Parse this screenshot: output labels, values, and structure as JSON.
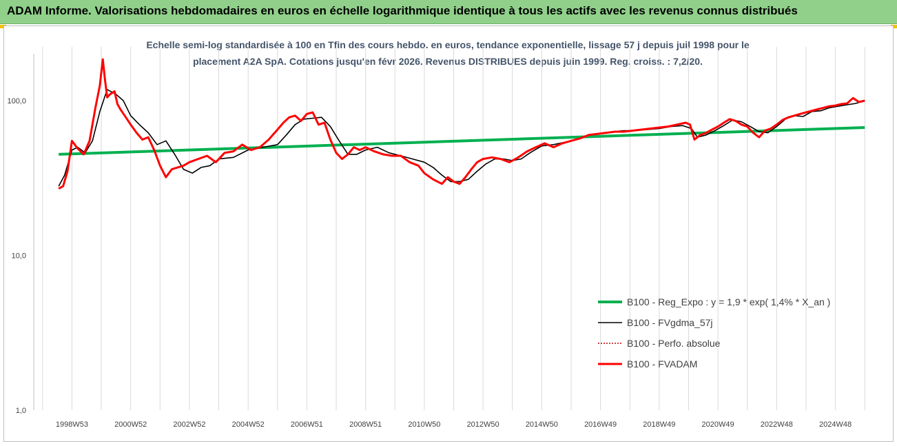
{
  "banner": {
    "title": "ADAM Informe. Valorisations hebdomadaires en euros en échelle logarithmique identique à tous les actifs avec les revenus connus distribués",
    "color": "#90d08a",
    "corner_color": "#f2c100"
  },
  "chart_data": {
    "type": "line",
    "title_line1": "Echelle semi-log standardisée à 100 en Tfin des cours hebdo. en euros, tendance exponentielle, lissage 57 j depuis juil 1998 pour le",
    "title_line2": "placement A2A SpA. Cotations jusqu'en févr 2026. Revenus DISTRIBUES depuis juin 1999. Reg. croiss. : 7,2/20.",
    "y_scale": "log",
    "ylim": [
      1,
      200
    ],
    "yticks": [
      1,
      10,
      100
    ],
    "ytick_labels": [
      "1,0",
      "10,0",
      "100,0"
    ],
    "xlim": [
      1997.7,
      2026.3
    ],
    "xticks": [
      1999.0,
      2001.0,
      2003.0,
      2005.0,
      2007.0,
      2009.0,
      2011.0,
      2013.0,
      2015.0,
      2017.0,
      2019.0,
      2021.0,
      2023.0,
      2025.0
    ],
    "xtick_labels": [
      "1998W53",
      "2000W52",
      "2002W52",
      "2004W52",
      "2006W51",
      "2008W51",
      "2010W50",
      "2012W50",
      "2014W50",
      "2016W49",
      "2018W49",
      "2020W49",
      "2022W48",
      "2024W48"
    ],
    "grid_x": true,
    "legend_position": "bottom-right",
    "series": [
      {
        "name": "B100 - Reg_Expo : y = 1,9 * exp( 1,4% *  X_an )",
        "color": "#00b050",
        "style": "solid-thick",
        "x": [
          1998.55,
          2026.0
        ],
        "y": [
          45,
          67
        ]
      },
      {
        "name": "B100 - FVgdma_57j",
        "color": "#000000",
        "style": "solid-thin",
        "x": [
          1998.55,
          1998.75,
          1999.0,
          1999.2,
          1999.45,
          1999.7,
          1999.95,
          2000.2,
          2000.5,
          2000.75,
          2001.0,
          2001.3,
          2001.6,
          2001.9,
          2002.2,
          2002.5,
          2002.8,
          2003.1,
          2003.4,
          2003.7,
          2004.0,
          2004.5,
          2005.0,
          2005.5,
          2006.0,
          2006.3,
          2006.6,
          2006.9,
          2007.2,
          2007.5,
          2007.8,
          2008.1,
          2008.4,
          2008.7,
          2009.0,
          2009.4,
          2009.8,
          2010.2,
          2010.6,
          2011.0,
          2011.3,
          2011.6,
          2011.9,
          2012.2,
          2012.5,
          2012.8,
          2013.1,
          2013.4,
          2013.7,
          2014.0,
          2014.3,
          2014.6,
          2015.0,
          2015.4,
          2015.8,
          2016.2,
          2016.6,
          2017.0,
          2017.4,
          2017.8,
          2018.2,
          2018.6,
          2019.0,
          2019.4,
          2019.8,
          2020.1,
          2020.3,
          2020.6,
          2020.9,
          2021.2,
          2021.5,
          2021.8,
          2022.1,
          2022.4,
          2022.7,
          2023.0,
          2023.3,
          2023.6,
          2023.9,
          2024.2,
          2024.5,
          2024.8,
          2025.1,
          2025.4,
          2025.7,
          2026.0
        ],
        "y": [
          28,
          33,
          48,
          50,
          46,
          55,
          85,
          118,
          110,
          100,
          80,
          70,
          62,
          52,
          55,
          45,
          36,
          34,
          37,
          38,
          42,
          43,
          48,
          50,
          52,
          60,
          70,
          76,
          77,
          78,
          68,
          55,
          45,
          45,
          48,
          50,
          46,
          44,
          42,
          40,
          37,
          33,
          30,
          30,
          31,
          35,
          39,
          42,
          42,
          41,
          42,
          46,
          51,
          52,
          54,
          56,
          60,
          61,
          63,
          64,
          64,
          65,
          66,
          68,
          69,
          66,
          58,
          60,
          64,
          69,
          75,
          73,
          68,
          63,
          62,
          68,
          76,
          80,
          79,
          85,
          86,
          90,
          92,
          94,
          96,
          100
        ]
      },
      {
        "name": "B100 - Perfo. absolue",
        "color": "#c00000",
        "style": "dotted",
        "x": [
          1998.55,
          1998.7,
          1998.85,
          1999.0,
          1999.2,
          1999.4,
          1999.6,
          1999.8,
          1999.95,
          2000.05,
          2000.12,
          2000.2,
          2000.3,
          2000.45,
          2000.55,
          2000.65,
          2000.8,
          2001.0,
          2001.2,
          2001.4,
          2001.6,
          2001.8,
          2002.0,
          2002.2,
          2002.4,
          2002.6,
          2002.8,
          2003.0,
          2003.3,
          2003.6,
          2003.9,
          2004.2,
          2004.5,
          2004.8,
          2005.1,
          2005.4,
          2005.7,
          2006.0,
          2006.2,
          2006.4,
          2006.6,
          2006.8,
          2007.0,
          2007.2,
          2007.4,
          2007.6,
          2007.8,
          2008.0,
          2008.2,
          2008.4,
          2008.6,
          2008.8,
          2009.0,
          2009.3,
          2009.6,
          2009.9,
          2010.2,
          2010.5,
          2010.8,
          2011.0,
          2011.3,
          2011.6,
          2011.8,
          2012.0,
          2012.2,
          2012.4,
          2012.6,
          2012.8,
          2013.0,
          2013.3,
          2013.6,
          2013.9,
          2014.2,
          2014.5,
          2014.8,
          2015.1,
          2015.4,
          2015.7,
          2016.0,
          2016.3,
          2016.6,
          2016.9,
          2017.2,
          2017.5,
          2017.8,
          2018.1,
          2018.4,
          2018.7,
          2019.0,
          2019.3,
          2019.6,
          2019.9,
          2020.05,
          2020.2,
          2020.4,
          2020.6,
          2020.8,
          2021.0,
          2021.2,
          2021.4,
          2021.6,
          2021.8,
          2022.0,
          2022.2,
          2022.4,
          2022.6,
          2022.8,
          2023.0,
          2023.2,
          2023.4,
          2023.6,
          2023.8,
          2024.0,
          2024.2,
          2024.4,
          2024.6,
          2024.8,
          2025.0,
          2025.2,
          2025.4,
          2025.6,
          2025.8,
          2026.0
        ],
        "y": [
          27,
          28,
          35,
          55,
          49,
          45,
          55,
          90,
          125,
          185,
          140,
          105,
          110,
          115,
          95,
          88,
          80,
          70,
          62,
          56,
          58,
          48,
          38,
          32,
          36,
          37,
          38,
          40,
          42,
          44,
          40,
          46,
          47,
          52,
          48,
          50,
          56,
          65,
          72,
          78,
          80,
          74,
          82,
          84,
          70,
          72,
          56,
          46,
          42,
          45,
          50,
          48,
          50,
          47,
          45,
          44,
          44,
          40,
          38,
          34,
          31,
          29,
          32,
          30,
          29,
          32,
          36,
          40,
          42,
          43,
          42,
          40,
          43,
          47,
          50,
          53,
          50,
          53,
          55,
          57,
          60,
          61,
          62,
          63,
          63,
          64,
          65,
          66,
          67,
          68,
          70,
          72,
          70,
          56,
          60,
          62,
          65,
          68,
          72,
          76,
          74,
          70,
          68,
          62,
          58,
          64,
          66,
          70,
          75,
          78,
          80,
          82,
          84,
          86,
          88,
          90,
          92,
          93,
          95,
          96,
          104,
          98,
          100
        ]
      },
      {
        "name": "B100 - FVADAM",
        "color": "#ff0000",
        "style": "solid-thick",
        "x": [
          1998.55,
          1998.7,
          1998.85,
          1999.0,
          1999.2,
          1999.4,
          1999.6,
          1999.8,
          1999.95,
          2000.05,
          2000.12,
          2000.2,
          2000.3,
          2000.45,
          2000.55,
          2000.65,
          2000.8,
          2001.0,
          2001.2,
          2001.4,
          2001.6,
          2001.8,
          2002.0,
          2002.2,
          2002.4,
          2002.6,
          2002.8,
          2003.0,
          2003.3,
          2003.6,
          2003.9,
          2004.2,
          2004.5,
          2004.8,
          2005.1,
          2005.4,
          2005.7,
          2006.0,
          2006.2,
          2006.4,
          2006.6,
          2006.8,
          2007.0,
          2007.2,
          2007.4,
          2007.6,
          2007.8,
          2008.0,
          2008.2,
          2008.4,
          2008.6,
          2008.8,
          2009.0,
          2009.3,
          2009.6,
          2009.9,
          2010.2,
          2010.5,
          2010.8,
          2011.0,
          2011.3,
          2011.6,
          2011.8,
          2012.0,
          2012.2,
          2012.4,
          2012.6,
          2012.8,
          2013.0,
          2013.3,
          2013.6,
          2013.9,
          2014.2,
          2014.5,
          2014.8,
          2015.1,
          2015.4,
          2015.7,
          2016.0,
          2016.3,
          2016.6,
          2016.9,
          2017.2,
          2017.5,
          2017.8,
          2018.1,
          2018.4,
          2018.7,
          2019.0,
          2019.3,
          2019.6,
          2019.9,
          2020.05,
          2020.2,
          2020.4,
          2020.6,
          2020.8,
          2021.0,
          2021.2,
          2021.4,
          2021.6,
          2021.8,
          2022.0,
          2022.2,
          2022.4,
          2022.6,
          2022.8,
          2023.0,
          2023.2,
          2023.4,
          2023.6,
          2023.8,
          2024.0,
          2024.2,
          2024.4,
          2024.6,
          2024.8,
          2025.0,
          2025.2,
          2025.4,
          2025.6,
          2025.8,
          2026.0
        ],
        "y": [
          27,
          28,
          35,
          55,
          49,
          45,
          55,
          90,
          125,
          185,
          140,
          105,
          110,
          115,
          95,
          88,
          80,
          70,
          62,
          56,
          58,
          48,
          38,
          32,
          36,
          37,
          38,
          40,
          42,
          44,
          40,
          46,
          47,
          52,
          48,
          50,
          56,
          65,
          72,
          78,
          80,
          74,
          82,
          84,
          70,
          72,
          56,
          46,
          42,
          45,
          50,
          48,
          50,
          47,
          45,
          44,
          44,
          40,
          38,
          34,
          31,
          29,
          32,
          30,
          29,
          32,
          36,
          40,
          42,
          43,
          42,
          40,
          43,
          47,
          50,
          53,
          50,
          53,
          55,
          57,
          60,
          61,
          62,
          63,
          63,
          64,
          65,
          66,
          67,
          68,
          70,
          72,
          70,
          56,
          60,
          62,
          65,
          68,
          72,
          76,
          74,
          70,
          68,
          62,
          58,
          64,
          66,
          70,
          75,
          78,
          80,
          82,
          84,
          86,
          88,
          90,
          92,
          93,
          95,
          96,
          104,
          98,
          100
        ]
      }
    ]
  }
}
